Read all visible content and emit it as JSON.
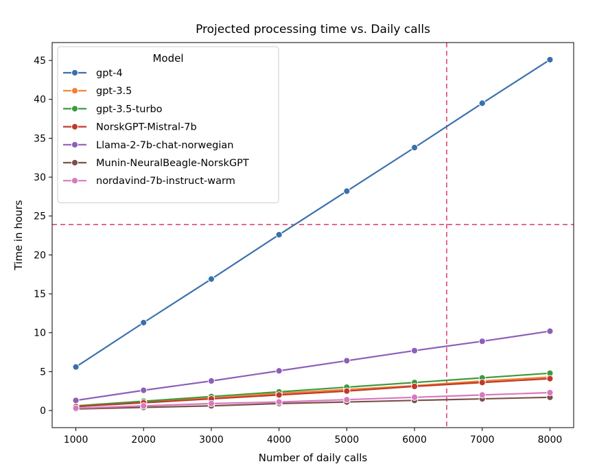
{
  "chart_data": {
    "type": "line",
    "title": "Projected processing time vs. Daily calls",
    "xlabel": "Number of daily calls",
    "ylabel": "Time in hours",
    "x": [
      1000,
      2000,
      3000,
      4000,
      5000,
      6000,
      7000,
      8000
    ],
    "xlim": [
      650,
      8350
    ],
    "ylim": [
      -2.2,
      47.3
    ],
    "xticks": [
      1000,
      2000,
      3000,
      4000,
      5000,
      6000,
      7000,
      8000
    ],
    "yticks": [
      0,
      5,
      10,
      15,
      20,
      25,
      30,
      35,
      40,
      45
    ],
    "grid": false,
    "legend": {
      "title": "Model",
      "placement": "top-left"
    },
    "series": [
      {
        "name": "gpt-4",
        "color": "#3a70ac",
        "values": [
          5.6,
          11.3,
          16.9,
          22.6,
          28.2,
          33.8,
          39.5,
          45.1
        ]
      },
      {
        "name": "gpt-3.5",
        "color": "#f08030",
        "values": [
          0.5,
          1.1,
          1.6,
          2.2,
          2.7,
          3.2,
          3.8,
          4.3
        ]
      },
      {
        "name": "gpt-3.5-turbo",
        "color": "#3d9a3d",
        "values": [
          0.6,
          1.2,
          1.8,
          2.4,
          3.0,
          3.6,
          4.2,
          4.8
        ]
      },
      {
        "name": "NorskGPT-Mistral-7b",
        "color": "#c0392b",
        "values": [
          0.5,
          1.0,
          1.5,
          2.0,
          2.5,
          3.1,
          3.6,
          4.1
        ]
      },
      {
        "name": "Llama-2-7b-chat-norwegian",
        "color": "#8c5fb8",
        "values": [
          1.3,
          2.6,
          3.8,
          5.1,
          6.4,
          7.7,
          8.9,
          10.2
        ]
      },
      {
        "name": "Munin-NeuralBeagle-NorskGPT",
        "color": "#7a5048",
        "values": [
          0.2,
          0.4,
          0.6,
          0.9,
          1.1,
          1.3,
          1.5,
          1.7
        ]
      },
      {
        "name": "nordavind-7b-instruct-warm",
        "color": "#d878c0",
        "values": [
          0.3,
          0.6,
          0.9,
          1.1,
          1.4,
          1.7,
          2.0,
          2.3
        ]
      }
    ],
    "reference_lines": [
      {
        "orientation": "horizontal",
        "value": 23.9,
        "color": "#e0456a",
        "style": "dashed"
      },
      {
        "orientation": "vertical",
        "value": 6475,
        "color": "#e0456a",
        "style": "dashed"
      }
    ]
  }
}
